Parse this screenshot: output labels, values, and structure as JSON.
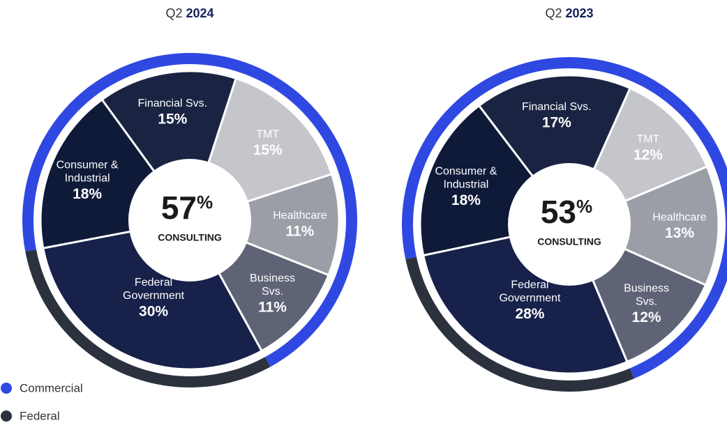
{
  "chart_data": [
    {
      "type": "donut",
      "title_prefix": "Q2",
      "title_year": "2024",
      "center_value": 57,
      "center_unit": "%",
      "center_caption": "CONSULTING",
      "categories": [
        "TMT",
        "Healthcare",
        "Business\nSvs.",
        "Federal\nGovernment",
        "Consumer &\nIndustrial",
        "Financial Svs."
      ],
      "values": [
        15,
        11,
        11,
        30,
        18,
        15
      ],
      "value_labels": [
        "15%",
        "11%",
        "11%",
        "30%",
        "18%",
        "15%"
      ],
      "colors": [
        "#c4c6cb",
        "#9c9ea7",
        "#5f6376",
        "#17214a",
        "#0f1a38",
        "#1a2442"
      ],
      "ring": [
        {
          "name": "Federal",
          "color": "#2b323d",
          "value": 30
        },
        {
          "name": "Commercial",
          "color": "#2f48e2",
          "value": 70
        }
      ]
    },
    {
      "type": "donut",
      "title_prefix": "Q2",
      "title_year": "2023",
      "center_value": 53,
      "center_unit": "%",
      "center_caption": "CONSULTING",
      "categories": [
        "TMT",
        "Healthcare",
        "Business\nSvs.",
        "Federal\nGovernment",
        "Consumer &\nIndustrial",
        "Financial Svs."
      ],
      "values": [
        12,
        13,
        12,
        28,
        18,
        17
      ],
      "value_labels": [
        "12%",
        "13%",
        "12%",
        "28%",
        "18%",
        "17%"
      ],
      "colors": [
        "#c4c6cb",
        "#9c9ea7",
        "#5f6376",
        "#17214a",
        "#0f1a38",
        "#1a2442"
      ],
      "ring": [
        {
          "name": "Federal",
          "color": "#2b323d",
          "value": 28
        },
        {
          "name": "Commercial",
          "color": "#2f48e2",
          "value": 72
        }
      ]
    }
  ]
}
